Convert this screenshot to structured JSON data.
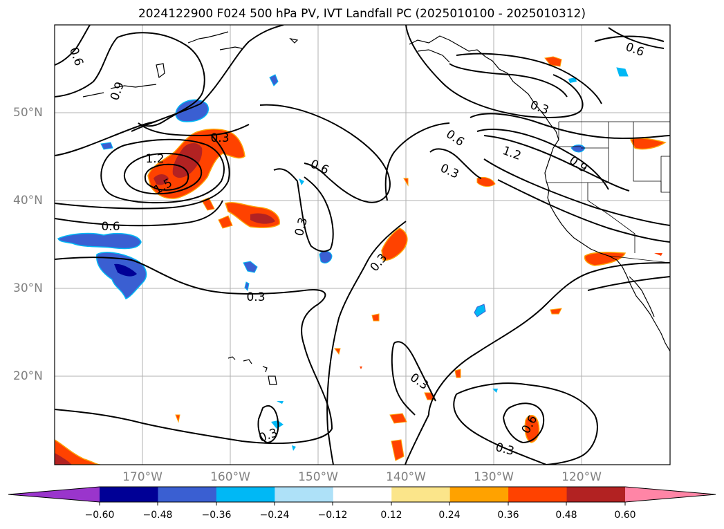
{
  "title": "2024122900 F024 500 hPa PV, IVT Landfall PC (2025010100 - 2025010312)",
  "lat_labels": [
    "50°N",
    "40°N",
    "30°N",
    "20°N"
  ],
  "lon_labels": [
    "170°W",
    "160°W",
    "150°W",
    "140°W",
    "130°W",
    "120°W"
  ],
  "contour_labels": [
    "0.6",
    "0.9",
    "0.3",
    "1.2",
    "1.5",
    "0.6",
    "0.6",
    "0.3",
    "0.3",
    "0.3",
    "0.6",
    "1.2",
    "0.3",
    "0.9",
    "0.6",
    "0.3",
    "0.3",
    "0.3",
    "0.6",
    "0.3",
    "0.6"
  ],
  "colorbar": {
    "ticks": [
      "−0.60",
      "−0.48",
      "−0.36",
      "−0.24",
      "−0.12",
      "0.12",
      "0.24",
      "0.36",
      "0.48",
      "0.60"
    ],
    "colors": [
      "#9a35cc",
      "#000096",
      "#3a5fd2",
      "#00b8f5",
      "#aee1f8",
      "#ffffff",
      "#fbe58a",
      "#ffa200",
      "#ff4200",
      "#b22222",
      "#ff85a6"
    ]
  },
  "colors": {
    "positive_strong": "#b22222",
    "positive_mid": "#ff4200",
    "positive_weak": "#ffa200",
    "negative_mid": "#3a5fd2",
    "negative_strong": "#000096",
    "negative_weak": "#00b8f5"
  }
}
